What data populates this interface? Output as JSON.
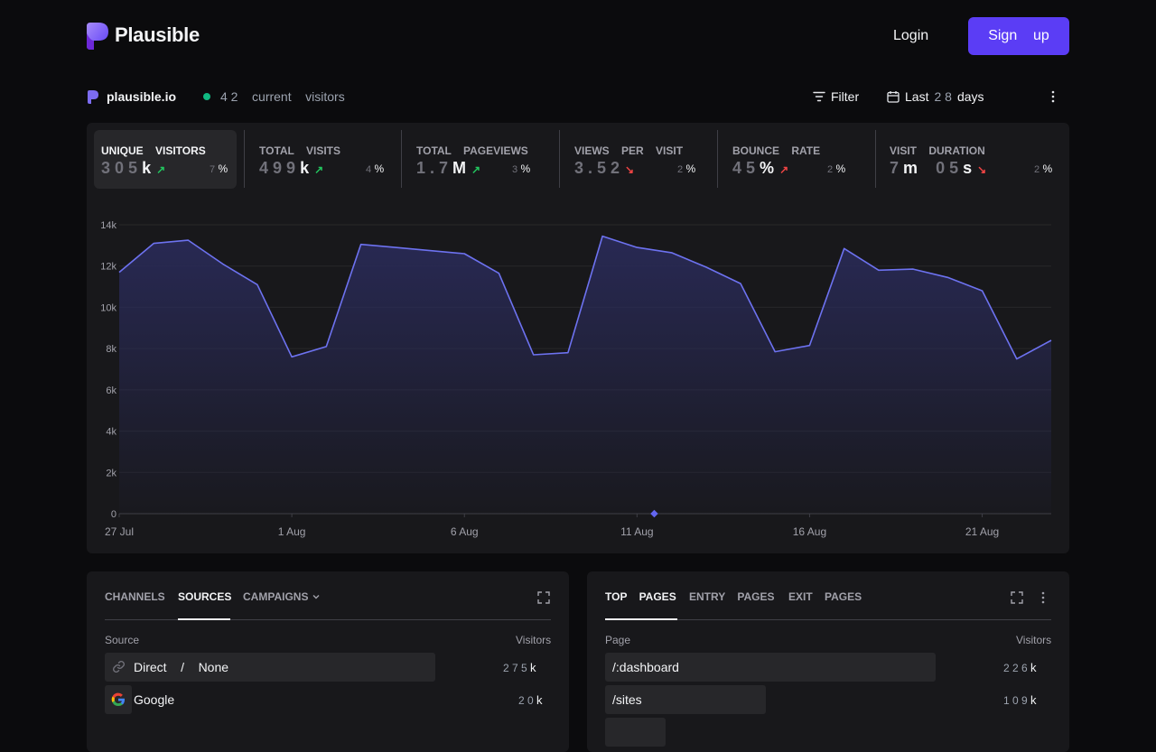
{
  "header": {
    "brand": "Plausible",
    "login_label": "Login",
    "signup_label": "Sign    up"
  },
  "site": {
    "name": "plausible.io",
    "current_visitors": "4 2",
    "current_visitors_label": "current    visitors",
    "filter_label": "Filter",
    "period_prefix": "Last",
    "period_num": "2 8",
    "period_suffix": "days"
  },
  "stats": [
    {
      "label": "UNIQUE    VISITORS",
      "value_dim": "3 0 5",
      "value_unit": "k",
      "direction": "up",
      "change_dim": "7",
      "change_unit": "%"
    },
    {
      "label": "TOTAL    VISITS",
      "value_dim": "4 9 9",
      "value_unit": "k",
      "direction": "up",
      "change_dim": "4",
      "change_unit": "%"
    },
    {
      "label": "TOTAL    PAGEVIEWS",
      "value_dim": "1 . 7",
      "value_unit": "M",
      "direction": "up",
      "change_dim": "3",
      "change_unit": "%"
    },
    {
      "label": "VIEWS    PER    VISIT",
      "value_dim": "3 . 5 2",
      "value_unit": "",
      "direction": "down",
      "change_dim": "2",
      "change_unit": "%"
    },
    {
      "label": "BOUNCE    RATE",
      "value_dim": "4 5",
      "value_unit": "%",
      "direction": "up-red",
      "change_dim": "2",
      "change_unit": "%"
    },
    {
      "label": "VISIT    DURATION",
      "value_dim": "7",
      "value_unit": "m",
      "value_dim2": "0 5",
      "value_unit2": "s",
      "direction": "down",
      "change_dim": "2",
      "change_unit": "%"
    }
  ],
  "chart_data": {
    "type": "area",
    "ylim": [
      0,
      14000
    ],
    "y_ticks": [
      "0",
      "2k",
      "4k",
      "6k",
      "8k",
      "10k",
      "12k",
      "14k"
    ],
    "x_tick_labels": [
      "27 Jul",
      "1 Aug",
      "6 Aug",
      "11 Aug",
      "16 Aug",
      "21 Aug"
    ],
    "x": [
      "27 Jul",
      "28 Jul",
      "29 Jul",
      "30 Jul",
      "31 Jul",
      "1 Aug",
      "2 Aug",
      "3 Aug",
      "4 Aug",
      "5 Aug",
      "6 Aug",
      "7 Aug",
      "8 Aug",
      "9 Aug",
      "10 Aug",
      "11 Aug",
      "12 Aug",
      "13 Aug",
      "14 Aug",
      "15 Aug",
      "16 Aug",
      "17 Aug",
      "18 Aug",
      "19 Aug",
      "20 Aug",
      "21 Aug",
      "22 Aug",
      "23 Aug"
    ],
    "values": [
      11700,
      13100,
      13250,
      12100,
      11100,
      7600,
      8100,
      13050,
      12900,
      12750,
      12600,
      11650,
      7700,
      7800,
      13450,
      12900,
      12650,
      11950,
      11150,
      7850,
      8150,
      12850,
      11800,
      11850,
      11450,
      10800,
      7500,
      8400
    ],
    "colors": {
      "line": "#6d72f0",
      "fill_top": "#2a2b5a",
      "grid": "#27272a"
    }
  },
  "sources_card": {
    "tabs": [
      "CHANNELS",
      "SOURCES",
      "CAMPAIGNS"
    ],
    "active_tab": "SOURCES",
    "col_left": "Source",
    "col_right": "Visitors",
    "rows": [
      {
        "label": "Direct    /    None",
        "value_dim": "2 7 5",
        "value_unit": "k",
        "icon": "link-icon",
        "bar": 0.74
      },
      {
        "label": "Google",
        "value_dim": "2 0",
        "value_unit": "k",
        "icon": "google-icon",
        "bar": 0.06
      }
    ]
  },
  "pages_card": {
    "tabs": [
      "TOP    PAGES",
      "ENTRY    PAGES",
      "EXIT    PAGES"
    ],
    "active_tab": "TOP    PAGES",
    "col_left": "Page",
    "col_right": "Visitors",
    "rows": [
      {
        "label": "/:dashboard",
        "value_dim": "2 2 6",
        "value_unit": "k",
        "bar": 0.74
      },
      {
        "label": "/sites",
        "value_dim": "1 0 9",
        "value_unit": "k",
        "bar": 0.36
      }
    ]
  }
}
